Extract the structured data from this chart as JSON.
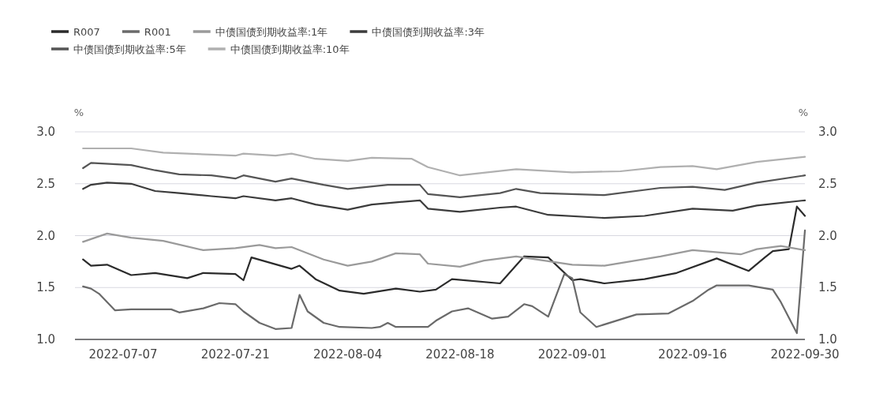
{
  "chart_data": {
    "type": "line",
    "ylabel": "%",
    "y2label": "%",
    "ylim": [
      1,
      3
    ],
    "yticks": [
      {
        "value": 1,
        "label": "1.0"
      },
      1.5,
      {
        "value": 2,
        "label": "2.0"
      },
      2.5,
      {
        "value": 3,
        "label": "3.0"
      }
    ],
    "y2lim": [
      1,
      3
    ],
    "y2ticks": [
      {
        "value": 1,
        "label": "1.0"
      },
      1.5,
      {
        "value": 2,
        "label": "2.0"
      },
      2.5,
      {
        "value": 3,
        "label": "3.0"
      }
    ],
    "xlim": [
      "2022-07-01",
      "2022-09-30"
    ],
    "xticks": [
      "2022-07-07",
      "2022-07-21",
      "2022-08-04",
      "2022-08-18",
      "2022-09-01",
      "2022-09-16",
      "2022-09-30"
    ],
    "grid": "y",
    "legend": "top left",
    "line_style": "solid",
    "series": [
      {
        "name": "R007",
        "color": "#2b2b2b",
        "x": [
          "2022-07-02",
          "2022-07-03",
          "2022-07-05",
          "2022-07-08",
          "2022-07-11",
          "2022-07-15",
          "2022-07-17",
          "2022-07-21",
          "2022-07-22",
          "2022-07-23",
          "2022-07-28",
          "2022-07-29",
          "2022-07-31",
          "2022-08-03",
          "2022-08-06",
          "2022-08-10",
          "2022-08-13",
          "2022-08-15",
          "2022-08-17",
          "2022-08-23",
          "2022-08-26",
          "2022-08-29",
          "2022-09-01",
          "2022-09-02",
          "2022-09-05",
          "2022-09-10",
          "2022-09-14",
          "2022-09-19",
          "2022-09-23",
          "2022-09-25",
          "2022-09-26",
          "2022-09-28",
          "2022-09-29",
          "2022-09-30"
        ],
        "values": [
          1.77,
          1.71,
          1.72,
          1.62,
          1.64,
          1.59,
          1.64,
          1.63,
          1.57,
          1.79,
          1.68,
          1.71,
          1.58,
          1.47,
          1.44,
          1.49,
          1.46,
          1.48,
          1.58,
          1.54,
          1.8,
          1.79,
          1.57,
          1.58,
          1.54,
          1.58,
          1.64,
          1.78,
          1.66,
          1.79,
          1.85,
          1.87,
          2.28,
          2.19
        ]
      },
      {
        "name": "R001",
        "color": "#6a6a6a",
        "x": [
          "2022-07-02",
          "2022-07-03",
          "2022-07-04",
          "2022-07-06",
          "2022-07-08",
          "2022-07-10",
          "2022-07-13",
          "2022-07-14",
          "2022-07-17",
          "2022-07-19",
          "2022-07-21",
          "2022-07-22",
          "2022-07-24",
          "2022-07-26",
          "2022-07-28",
          "2022-07-29",
          "2022-07-30",
          "2022-08-01",
          "2022-08-03",
          "2022-08-07",
          "2022-08-08",
          "2022-08-09",
          "2022-08-10",
          "2022-08-14",
          "2022-08-15",
          "2022-08-17",
          "2022-08-19",
          "2022-08-22",
          "2022-08-24",
          "2022-08-26",
          "2022-08-27",
          "2022-08-29",
          "2022-08-31",
          "2022-09-01",
          "2022-09-02",
          "2022-09-04",
          "2022-09-09",
          "2022-09-13",
          "2022-09-16",
          "2022-09-18",
          "2022-09-19",
          "2022-09-23",
          "2022-09-26",
          "2022-09-27",
          "2022-09-29",
          "2022-09-30"
        ],
        "values": [
          1.51,
          1.49,
          1.44,
          1.28,
          1.29,
          1.29,
          1.29,
          1.26,
          1.3,
          1.35,
          1.34,
          1.27,
          1.16,
          1.1,
          1.11,
          1.43,
          1.27,
          1.16,
          1.12,
          1.11,
          1.12,
          1.16,
          1.12,
          1.12,
          1.18,
          1.27,
          1.3,
          1.2,
          1.22,
          1.34,
          1.32,
          1.22,
          1.63,
          1.59,
          1.26,
          1.12,
          1.24,
          1.25,
          1.37,
          1.48,
          1.52,
          1.52,
          1.48,
          1.36,
          1.06,
          2.05
        ]
      },
      {
        "name": "中债国债到期收益率:1年",
        "color": "#9a9a9a",
        "x": [
          "2022-07-02",
          "2022-07-05",
          "2022-07-08",
          "2022-07-12",
          "2022-07-17",
          "2022-07-21",
          "2022-07-24",
          "2022-07-26",
          "2022-07-28",
          "2022-08-01",
          "2022-08-04",
          "2022-08-07",
          "2022-08-10",
          "2022-08-13",
          "2022-08-14",
          "2022-08-18",
          "2022-08-21",
          "2022-08-25",
          "2022-09-01",
          "2022-09-05",
          "2022-09-12",
          "2022-09-16",
          "2022-09-22",
          "2022-09-24",
          "2022-09-27",
          "2022-09-30"
        ],
        "values": [
          1.94,
          2.02,
          1.98,
          1.95,
          1.86,
          1.88,
          1.91,
          1.88,
          1.89,
          1.77,
          1.71,
          1.75,
          1.83,
          1.82,
          1.73,
          1.7,
          1.76,
          1.8,
          1.72,
          1.71,
          1.8,
          1.86,
          1.82,
          1.87,
          1.9,
          1.86
        ]
      },
      {
        "name": "中债国债到期收益率:3年",
        "color": "#3c3c3c",
        "x": [
          "2022-07-02",
          "2022-07-03",
          "2022-07-05",
          "2022-07-08",
          "2022-07-11",
          "2022-07-14",
          "2022-07-18",
          "2022-07-21",
          "2022-07-22",
          "2022-07-26",
          "2022-07-28",
          "2022-07-31",
          "2022-08-04",
          "2022-08-07",
          "2022-08-13",
          "2022-08-14",
          "2022-08-18",
          "2022-08-23",
          "2022-08-25",
          "2022-08-29",
          "2022-09-05",
          "2022-09-10",
          "2022-09-16",
          "2022-09-21",
          "2022-09-24",
          "2022-09-30"
        ],
        "values": [
          2.45,
          2.49,
          2.51,
          2.5,
          2.43,
          2.41,
          2.38,
          2.36,
          2.38,
          2.34,
          2.36,
          2.3,
          2.25,
          2.3,
          2.34,
          2.26,
          2.23,
          2.27,
          2.28,
          2.2,
          2.17,
          2.19,
          2.26,
          2.24,
          2.29,
          2.34
        ]
      },
      {
        "name": "中债国债到期收益率:5年",
        "color": "#555555",
        "x": [
          "2022-07-02",
          "2022-07-03",
          "2022-07-08",
          "2022-07-11",
          "2022-07-14",
          "2022-07-18",
          "2022-07-21",
          "2022-07-22",
          "2022-07-26",
          "2022-07-28",
          "2022-08-01",
          "2022-08-04",
          "2022-08-09",
          "2022-08-13",
          "2022-08-14",
          "2022-08-18",
          "2022-08-23",
          "2022-08-25",
          "2022-08-28",
          "2022-09-05",
          "2022-09-12",
          "2022-09-16",
          "2022-09-20",
          "2022-09-24",
          "2022-09-30"
        ],
        "values": [
          2.65,
          2.7,
          2.68,
          2.63,
          2.59,
          2.58,
          2.55,
          2.58,
          2.52,
          2.55,
          2.49,
          2.45,
          2.49,
          2.49,
          2.4,
          2.37,
          2.41,
          2.45,
          2.41,
          2.39,
          2.46,
          2.47,
          2.44,
          2.51,
          2.58
        ]
      },
      {
        "name": "中债国债到期收益率:10年",
        "color": "#b0b0b0",
        "x": [
          "2022-07-02",
          "2022-07-08",
          "2022-07-12",
          "2022-07-18",
          "2022-07-21",
          "2022-07-22",
          "2022-07-26",
          "2022-07-28",
          "2022-07-31",
          "2022-08-04",
          "2022-08-07",
          "2022-08-12",
          "2022-08-14",
          "2022-08-18",
          "2022-08-25",
          "2022-09-01",
          "2022-09-07",
          "2022-09-12",
          "2022-09-16",
          "2022-09-19",
          "2022-09-24",
          "2022-09-30"
        ],
        "values": [
          2.84,
          2.84,
          2.8,
          2.78,
          2.77,
          2.79,
          2.77,
          2.79,
          2.74,
          2.72,
          2.75,
          2.74,
          2.66,
          2.58,
          2.64,
          2.61,
          2.62,
          2.66,
          2.67,
          2.64,
          2.71,
          2.76
        ]
      }
    ]
  }
}
